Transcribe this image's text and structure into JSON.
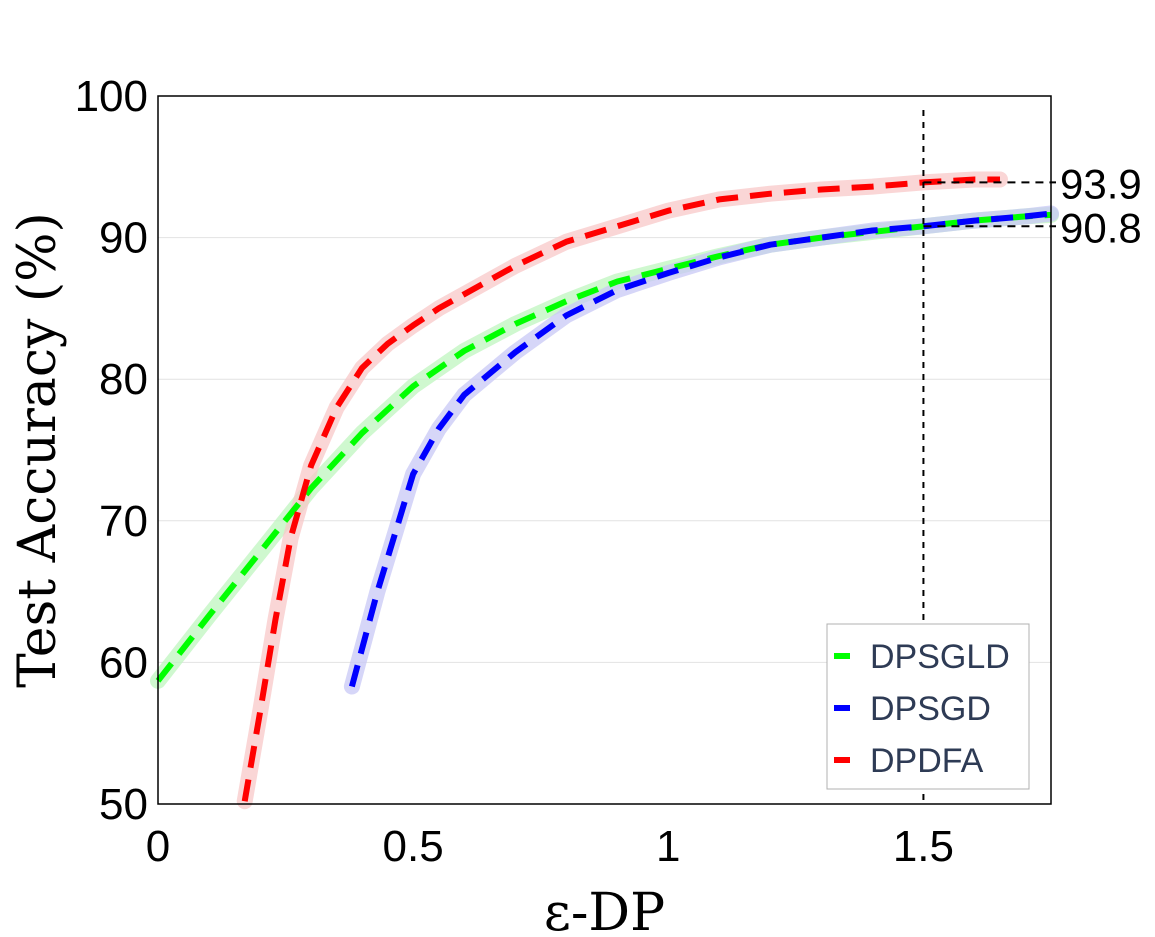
{
  "chart_data": {
    "type": "line",
    "xlabel": "ε-DP",
    "ylabel": "Test Accuracy (%)",
    "xlim": [
      0,
      1.75
    ],
    "ylim": [
      50,
      100
    ],
    "xticks": [
      0,
      0.5,
      1,
      1.5
    ],
    "xtick_labels": [
      "0",
      "0.5",
      "1",
      "1.5"
    ],
    "yticks": [
      50,
      60,
      70,
      80,
      90,
      100
    ],
    "ytick_labels": [
      "50",
      "60",
      "70",
      "80",
      "90",
      "100"
    ],
    "grid": "horizontal",
    "legend_position": "bottom-right",
    "reference_x": 1.5,
    "annotations": [
      {
        "text": "93.9",
        "y": 93.9
      },
      {
        "text": "90.8",
        "y": 90.8
      }
    ],
    "series": [
      {
        "name": "DPSGLD",
        "color": "#00ff00",
        "band_color": "#bff5bf",
        "x": [
          0,
          0.1,
          0.2,
          0.3,
          0.4,
          0.5,
          0.6,
          0.7,
          0.8,
          0.9,
          1.0,
          1.1,
          1.2,
          1.3,
          1.4,
          1.5,
          1.6,
          1.7,
          1.75
        ],
        "y": [
          58.7,
          63.3,
          67.8,
          72.3,
          76.2,
          79.5,
          82.0,
          83.9,
          85.5,
          86.9,
          87.8,
          88.7,
          89.5,
          90.0,
          90.4,
          90.8,
          91.2,
          91.5,
          91.6
        ]
      },
      {
        "name": "DPSGD",
        "color": "#0000ff",
        "band_color": "#c8c8f5",
        "x": [
          0.38,
          0.43,
          0.5,
          0.55,
          0.6,
          0.7,
          0.8,
          0.9,
          1.0,
          1.1,
          1.2,
          1.3,
          1.4,
          1.5,
          1.6,
          1.7,
          1.75
        ],
        "y": [
          58.3,
          65.0,
          73.3,
          76.5,
          78.9,
          81.9,
          84.5,
          86.3,
          87.5,
          88.6,
          89.5,
          90.0,
          90.5,
          90.8,
          91.2,
          91.5,
          91.7
        ]
      },
      {
        "name": "DPDFA",
        "color": "#ff0000",
        "band_color": "#f8c8c8",
        "x": [
          0.17,
          0.2,
          0.23,
          0.26,
          0.3,
          0.35,
          0.4,
          0.45,
          0.5,
          0.55,
          0.6,
          0.7,
          0.8,
          0.9,
          1.0,
          1.1,
          1.2,
          1.3,
          1.4,
          1.5,
          1.6,
          1.65
        ],
        "y": [
          50.2,
          56.5,
          63.0,
          68.8,
          73.9,
          78.0,
          80.8,
          82.5,
          83.8,
          85.0,
          86.0,
          88.0,
          89.7,
          90.8,
          91.9,
          92.7,
          93.1,
          93.4,
          93.6,
          93.9,
          94.1,
          94.1
        ]
      }
    ]
  }
}
